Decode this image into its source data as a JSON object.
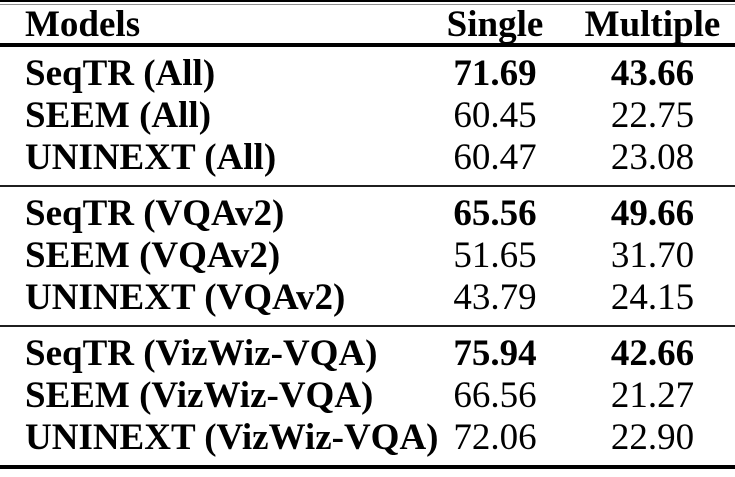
{
  "table": {
    "headers": [
      "Models",
      "Single",
      "Multiple"
    ],
    "sections": [
      {
        "rows": [
          {
            "model": "SeqTR (All)",
            "single": "71.69",
            "multiple": "43.66"
          },
          {
            "model": "SEEM (All)",
            "single": "60.45",
            "multiple": "22.75"
          },
          {
            "model": "UNINEXT (All)",
            "single": "60.47",
            "multiple": "23.08"
          }
        ]
      },
      {
        "rows": [
          {
            "model": "SeqTR (VQAv2)",
            "single": "65.56",
            "multiple": "49.66"
          },
          {
            "model": "SEEM (VQAv2)",
            "single": "51.65",
            "multiple": "31.70"
          },
          {
            "model": "UNINEXT (VQAv2)",
            "single": "43.79",
            "multiple": "24.15"
          }
        ]
      },
      {
        "rows": [
          {
            "model": "SeqTR (VizWiz-VQA)",
            "single": "75.94",
            "multiple": "42.66"
          },
          {
            "model": "SEEM (VizWiz-VQA)",
            "single": "66.56",
            "multiple": "21.27"
          },
          {
            "model": "UNINEXT (VizWiz-VQA)",
            "single": "72.06",
            "multiple": "22.90"
          }
        ]
      }
    ],
    "colors": {
      "text": "#000000",
      "background": "#ffffff",
      "rule": "#000000"
    }
  }
}
